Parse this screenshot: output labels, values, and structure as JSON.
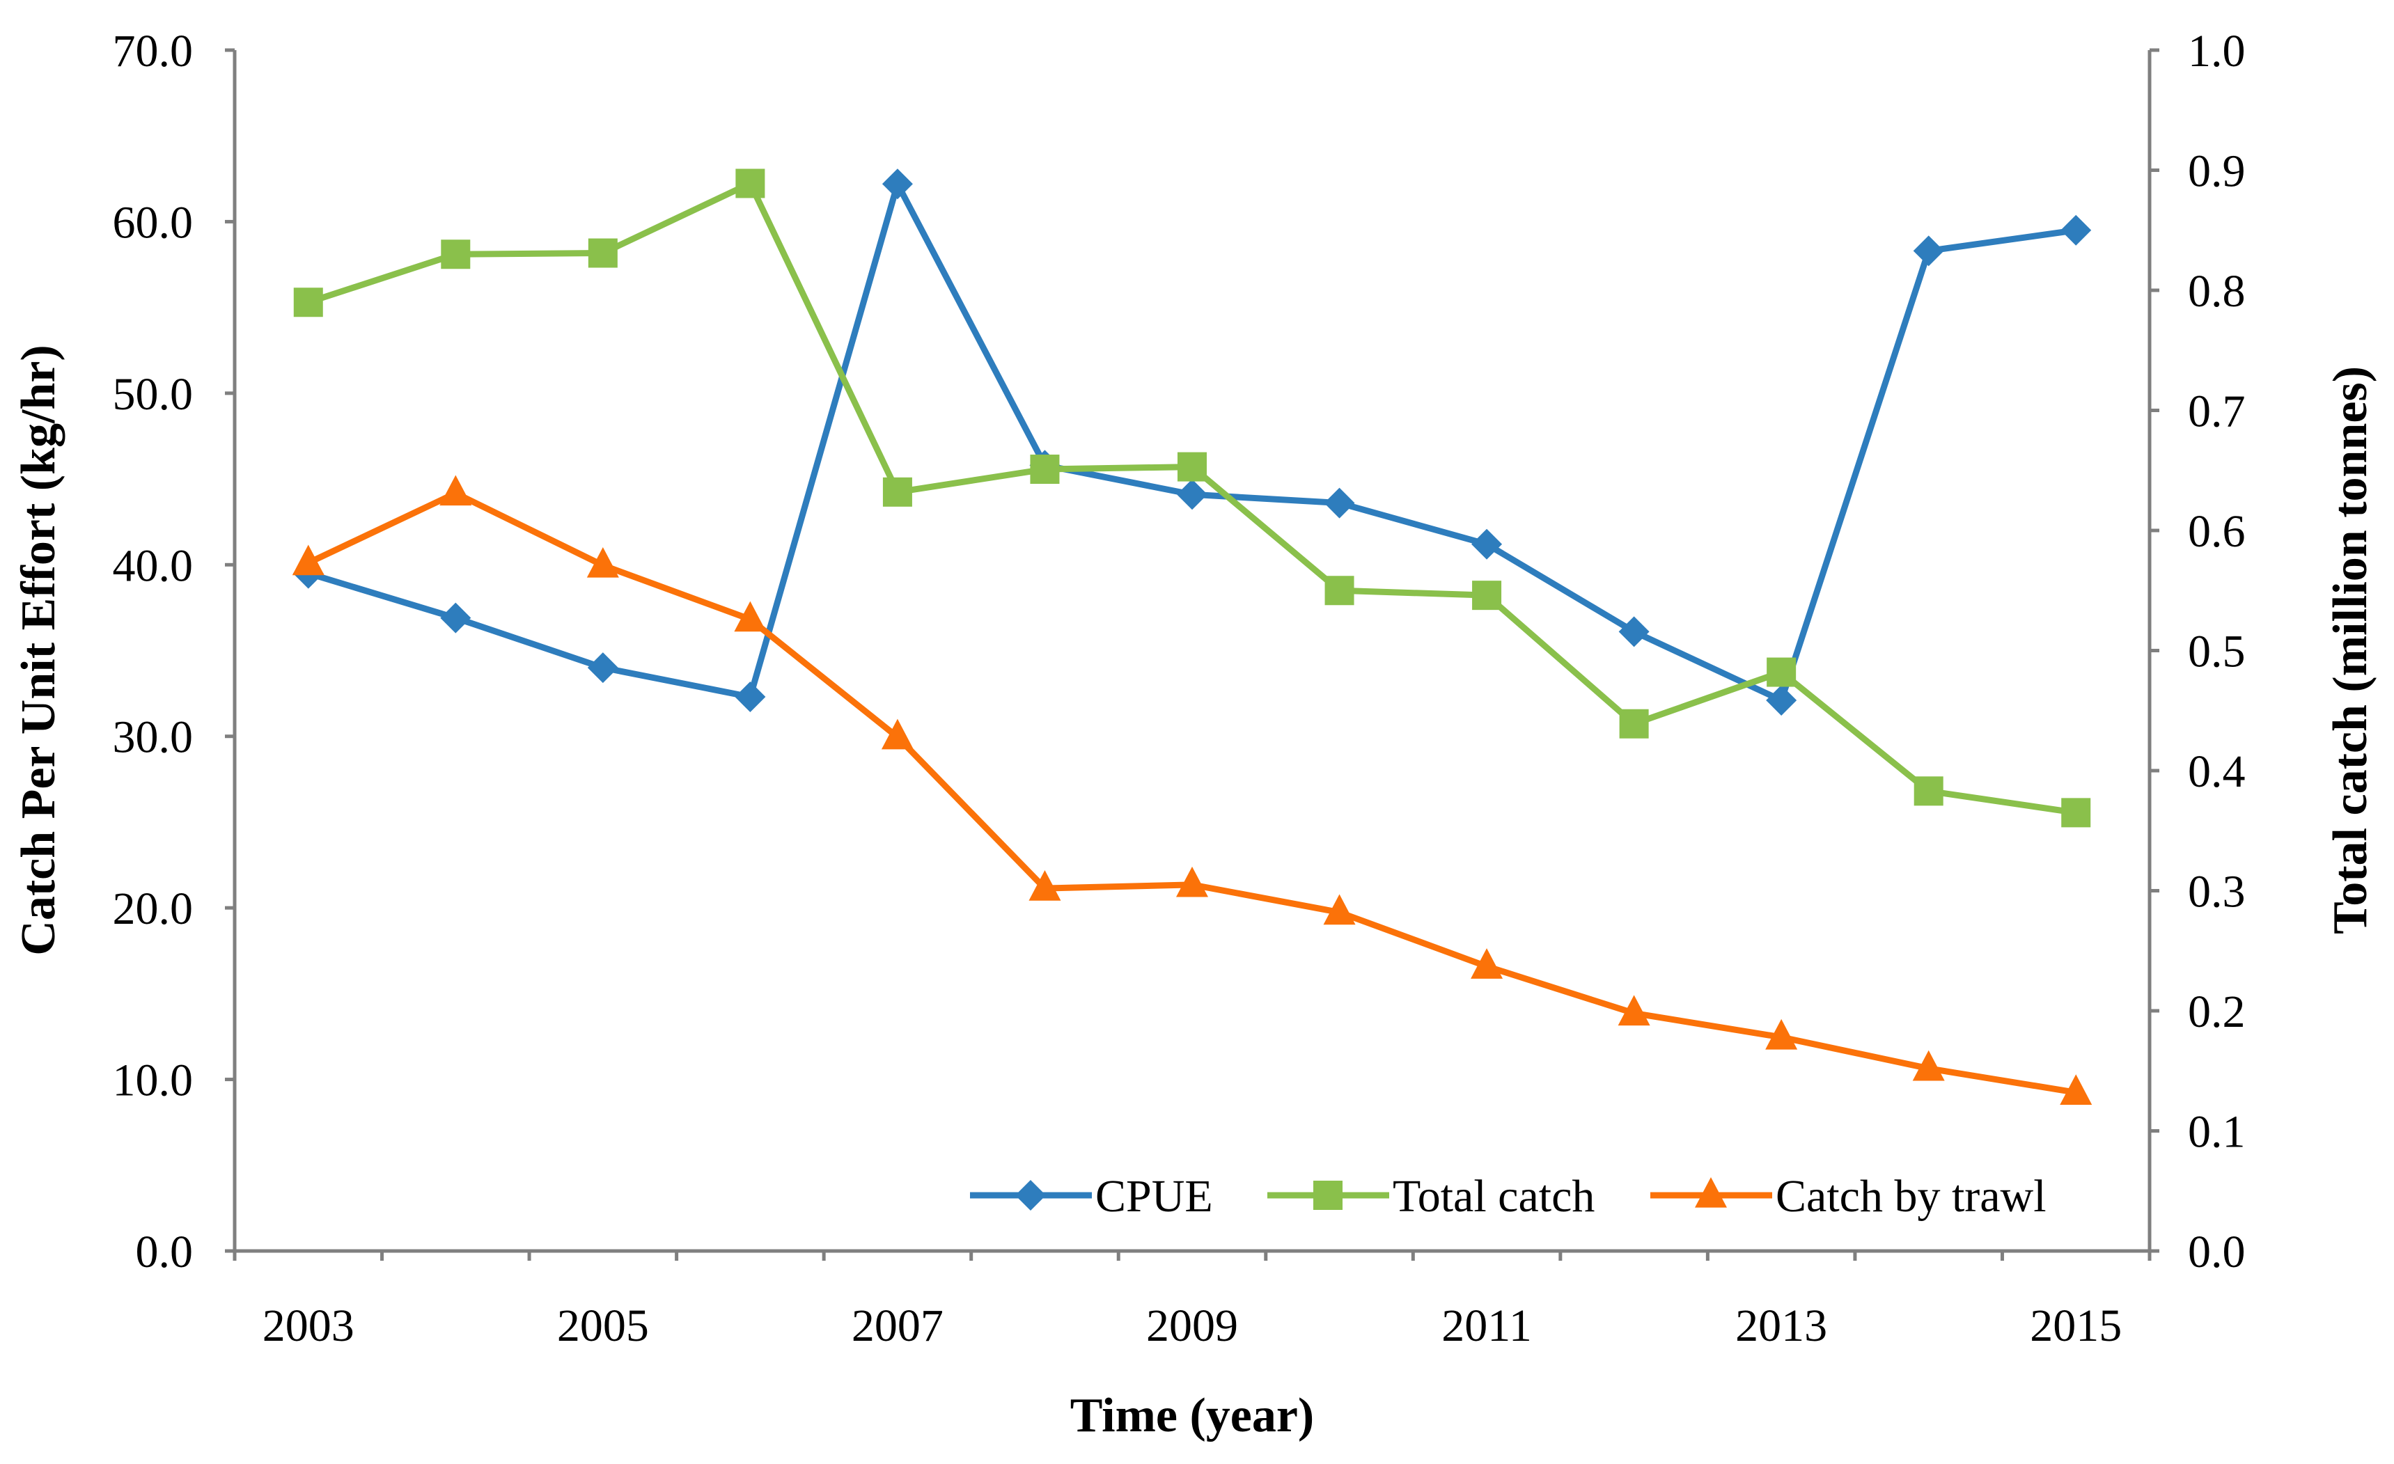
{
  "chart_data": {
    "type": "line",
    "title": "",
    "xlabel": "Time (year)",
    "ylabel": "Catch Per Unit Effort (kg/hr)",
    "ylabel_right": "Total catch (million tonnes)",
    "x": [
      2003,
      2004,
      2005,
      2006,
      2007,
      2008,
      2009,
      2010,
      2011,
      2012,
      2013,
      2014,
      2015
    ],
    "x_tick_labels": [
      "2003",
      "2005",
      "2007",
      "2009",
      "2011",
      "2013",
      "2015"
    ],
    "ylim": [
      0,
      70
    ],
    "y_tick_labels": [
      "0.0",
      "10.0",
      "20.0",
      "30.0",
      "40.0",
      "50.0",
      "60.0",
      "70.0"
    ],
    "ylim_right": [
      0,
      1.0
    ],
    "y2_tick_labels": [
      "0.0",
      "0.1",
      "0.2",
      "0.3",
      "0.4",
      "0.5",
      "0.6",
      "0.7",
      "0.8",
      "0.9",
      "1.0"
    ],
    "grid": false,
    "legend_position": "bottom-right",
    "series": [
      {
        "name": "CPUE",
        "axis": "left",
        "marker": "diamond",
        "color": "#2e7dbd",
        "values": [
          39.5,
          36.9,
          34.0,
          32.3,
          62.2,
          45.8,
          44.1,
          43.6,
          41.2,
          36.1,
          32.1,
          58.3,
          59.5
        ]
      },
      {
        "name": "Total catch",
        "axis": "right",
        "marker": "square",
        "color": "#8ac04b",
        "values": [
          0.79,
          0.83,
          0.831,
          0.889,
          0.632,
          0.651,
          0.653,
          0.55,
          0.546,
          0.439,
          0.482,
          0.383,
          0.365
        ]
      },
      {
        "name": "Catch by trawl",
        "axis": "right",
        "marker": "triangle",
        "color": "#fb7209",
        "values": [
          0.573,
          0.631,
          0.571,
          0.526,
          0.428,
          0.302,
          0.305,
          0.282,
          0.237,
          0.198,
          0.178,
          0.152,
          0.132
        ]
      }
    ]
  }
}
